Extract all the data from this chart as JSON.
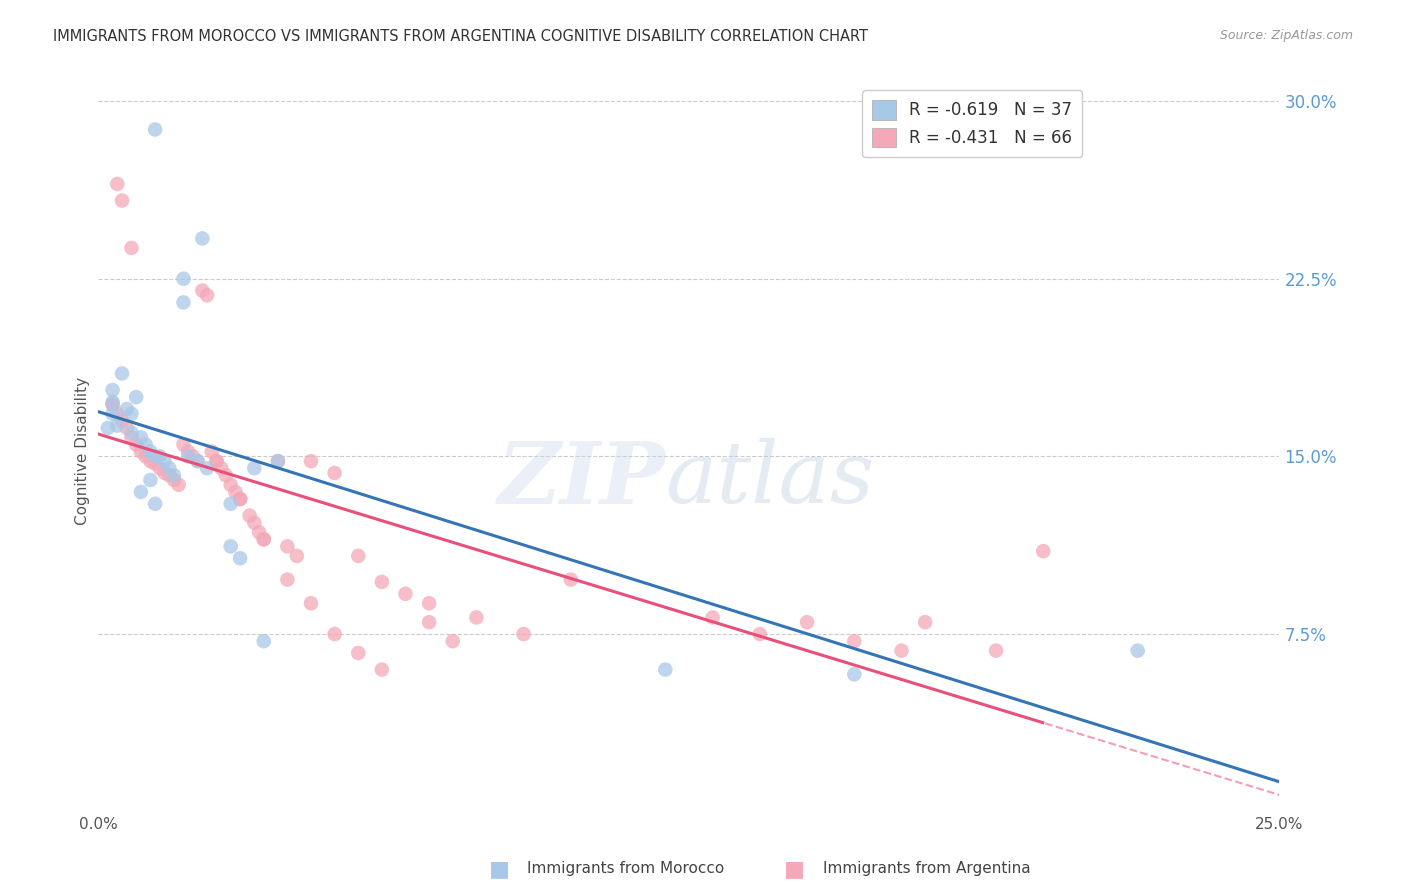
{
  "title": "IMMIGRANTS FROM MOROCCO VS IMMIGRANTS FROM ARGENTINA COGNITIVE DISABILITY CORRELATION CHART",
  "source": "Source: ZipAtlas.com",
  "ylabel": "Cognitive Disability",
  "xlim": [
    0.0,
    0.25
  ],
  "ylim": [
    0.0,
    0.305
  ],
  "yticks": [
    0.0,
    0.075,
    0.15,
    0.225,
    0.3
  ],
  "xticks": [
    0.0,
    0.05,
    0.1,
    0.15,
    0.2,
    0.25
  ],
  "morocco_color": "#a8c8e8",
  "argentina_color": "#f4a8b8",
  "morocco_line_color": "#3574b5",
  "argentina_line_color": "#e8507a",
  "right_axis_color": "#5b9bd5",
  "morocco_R": "-0.619",
  "morocco_N": "37",
  "argentina_R": "-0.431",
  "argentina_N": "66",
  "background_color": "#ffffff",
  "grid_color": "#cccccc",
  "morocco_x": [
    0.012,
    0.022,
    0.018,
    0.018,
    0.005,
    0.003,
    0.003,
    0.006,
    0.007,
    0.004,
    0.007,
    0.009,
    0.01,
    0.011,
    0.012,
    0.013,
    0.014,
    0.015,
    0.016,
    0.011,
    0.009,
    0.012,
    0.019,
    0.021,
    0.023,
    0.028,
    0.028,
    0.033,
    0.038,
    0.03,
    0.035,
    0.12,
    0.16,
    0.22,
    0.008,
    0.003,
    0.002
  ],
  "morocco_y": [
    0.288,
    0.242,
    0.225,
    0.215,
    0.185,
    0.178,
    0.173,
    0.17,
    0.168,
    0.163,
    0.16,
    0.158,
    0.155,
    0.152,
    0.15,
    0.15,
    0.148,
    0.145,
    0.142,
    0.14,
    0.135,
    0.13,
    0.15,
    0.148,
    0.145,
    0.13,
    0.112,
    0.145,
    0.148,
    0.107,
    0.072,
    0.06,
    0.058,
    0.068,
    0.175,
    0.168,
    0.162
  ],
  "argentina_x": [
    0.004,
    0.005,
    0.007,
    0.003,
    0.004,
    0.005,
    0.006,
    0.007,
    0.008,
    0.009,
    0.01,
    0.011,
    0.012,
    0.013,
    0.014,
    0.015,
    0.016,
    0.017,
    0.018,
    0.019,
    0.02,
    0.021,
    0.022,
    0.023,
    0.024,
    0.025,
    0.026,
    0.027,
    0.028,
    0.029,
    0.03,
    0.032,
    0.033,
    0.034,
    0.035,
    0.038,
    0.04,
    0.042,
    0.045,
    0.05,
    0.055,
    0.06,
    0.065,
    0.07,
    0.075,
    0.08,
    0.09,
    0.1,
    0.13,
    0.14,
    0.15,
    0.16,
    0.17,
    0.175,
    0.19,
    0.2,
    0.07,
    0.055,
    0.06,
    0.003,
    0.025,
    0.03,
    0.035,
    0.04,
    0.045,
    0.05
  ],
  "argentina_y": [
    0.265,
    0.258,
    0.238,
    0.172,
    0.168,
    0.165,
    0.162,
    0.158,
    0.155,
    0.152,
    0.15,
    0.148,
    0.147,
    0.145,
    0.143,
    0.142,
    0.14,
    0.138,
    0.155,
    0.152,
    0.15,
    0.148,
    0.22,
    0.218,
    0.152,
    0.148,
    0.145,
    0.142,
    0.138,
    0.135,
    0.132,
    0.125,
    0.122,
    0.118,
    0.115,
    0.148,
    0.112,
    0.108,
    0.148,
    0.143,
    0.108,
    0.097,
    0.092,
    0.088,
    0.072,
    0.082,
    0.075,
    0.098,
    0.082,
    0.075,
    0.08,
    0.072,
    0.068,
    0.08,
    0.068,
    0.11,
    0.08,
    0.067,
    0.06,
    0.172,
    0.148,
    0.132,
    0.115,
    0.098,
    0.088,
    0.075
  ]
}
